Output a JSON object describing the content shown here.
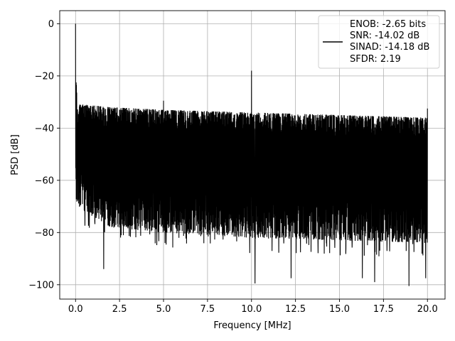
{
  "chart_data": {
    "type": "line",
    "xlabel": "Frequency [MHz]",
    "ylabel": "PSD [dB]",
    "xlim": [
      -0.9,
      21.0
    ],
    "ylim": [
      -105.5,
      5.0
    ],
    "grid": true,
    "x_ticks": [
      0.0,
      2.5,
      5.0,
      7.5,
      10.0,
      12.5,
      15.0,
      17.5,
      20.0
    ],
    "x_tick_labels": [
      "0.0",
      "2.5",
      "5.0",
      "7.5",
      "10.0",
      "12.5",
      "15.0",
      "17.5",
      "20.0"
    ],
    "y_ticks": [
      0,
      -20,
      -40,
      -60,
      -80,
      -100
    ],
    "y_tick_labels": [
      "0",
      "−20",
      "−40",
      "−60",
      "−80",
      "−100"
    ],
    "legend": {
      "placement": "upper-right",
      "lines": [
        "ENOB: -2.65 bits",
        "SNR: -14.02 dB",
        "SINAD: -14.18 dB",
        "SFDR: 2.19"
      ]
    },
    "series": [
      {
        "color": "#000000",
        "x_range": [
          0.0,
          20.0
        ],
        "upper_envelope": [
          [
            0.05,
            -23
          ],
          [
            0.1,
            -31
          ],
          [
            0.5,
            -31
          ],
          [
            2.0,
            -32
          ],
          [
            5.0,
            -33
          ],
          [
            10.0,
            -34
          ],
          [
            15.0,
            -35
          ],
          [
            20.0,
            -36
          ]
        ],
        "lower_envelope": [
          [
            0.05,
            -70
          ],
          [
            2.0,
            -78
          ],
          [
            5.0,
            -80
          ],
          [
            10.0,
            -82
          ],
          [
            15.0,
            -83
          ],
          [
            20.0,
            -84
          ]
        ],
        "peaks": [
          {
            "x": 0.0,
            "y": 0.0
          },
          {
            "x": 0.03,
            "y": -22.5
          },
          {
            "x": 5.0,
            "y": -29.5
          },
          {
            "x": 10.0,
            "y": -18.0
          },
          {
            "x": 20.0,
            "y": -32.5
          }
        ],
        "dips": [
          {
            "x": 1.6,
            "y": -94.0
          },
          {
            "x": 10.2,
            "y": -99.5
          },
          {
            "x": 12.25,
            "y": -97.5
          },
          {
            "x": 16.3,
            "y": -97.5
          },
          {
            "x": 17.0,
            "y": -99.0
          },
          {
            "x": 18.95,
            "y": -100.5
          },
          {
            "x": 19.9,
            "y": -97.5
          }
        ]
      }
    ]
  }
}
